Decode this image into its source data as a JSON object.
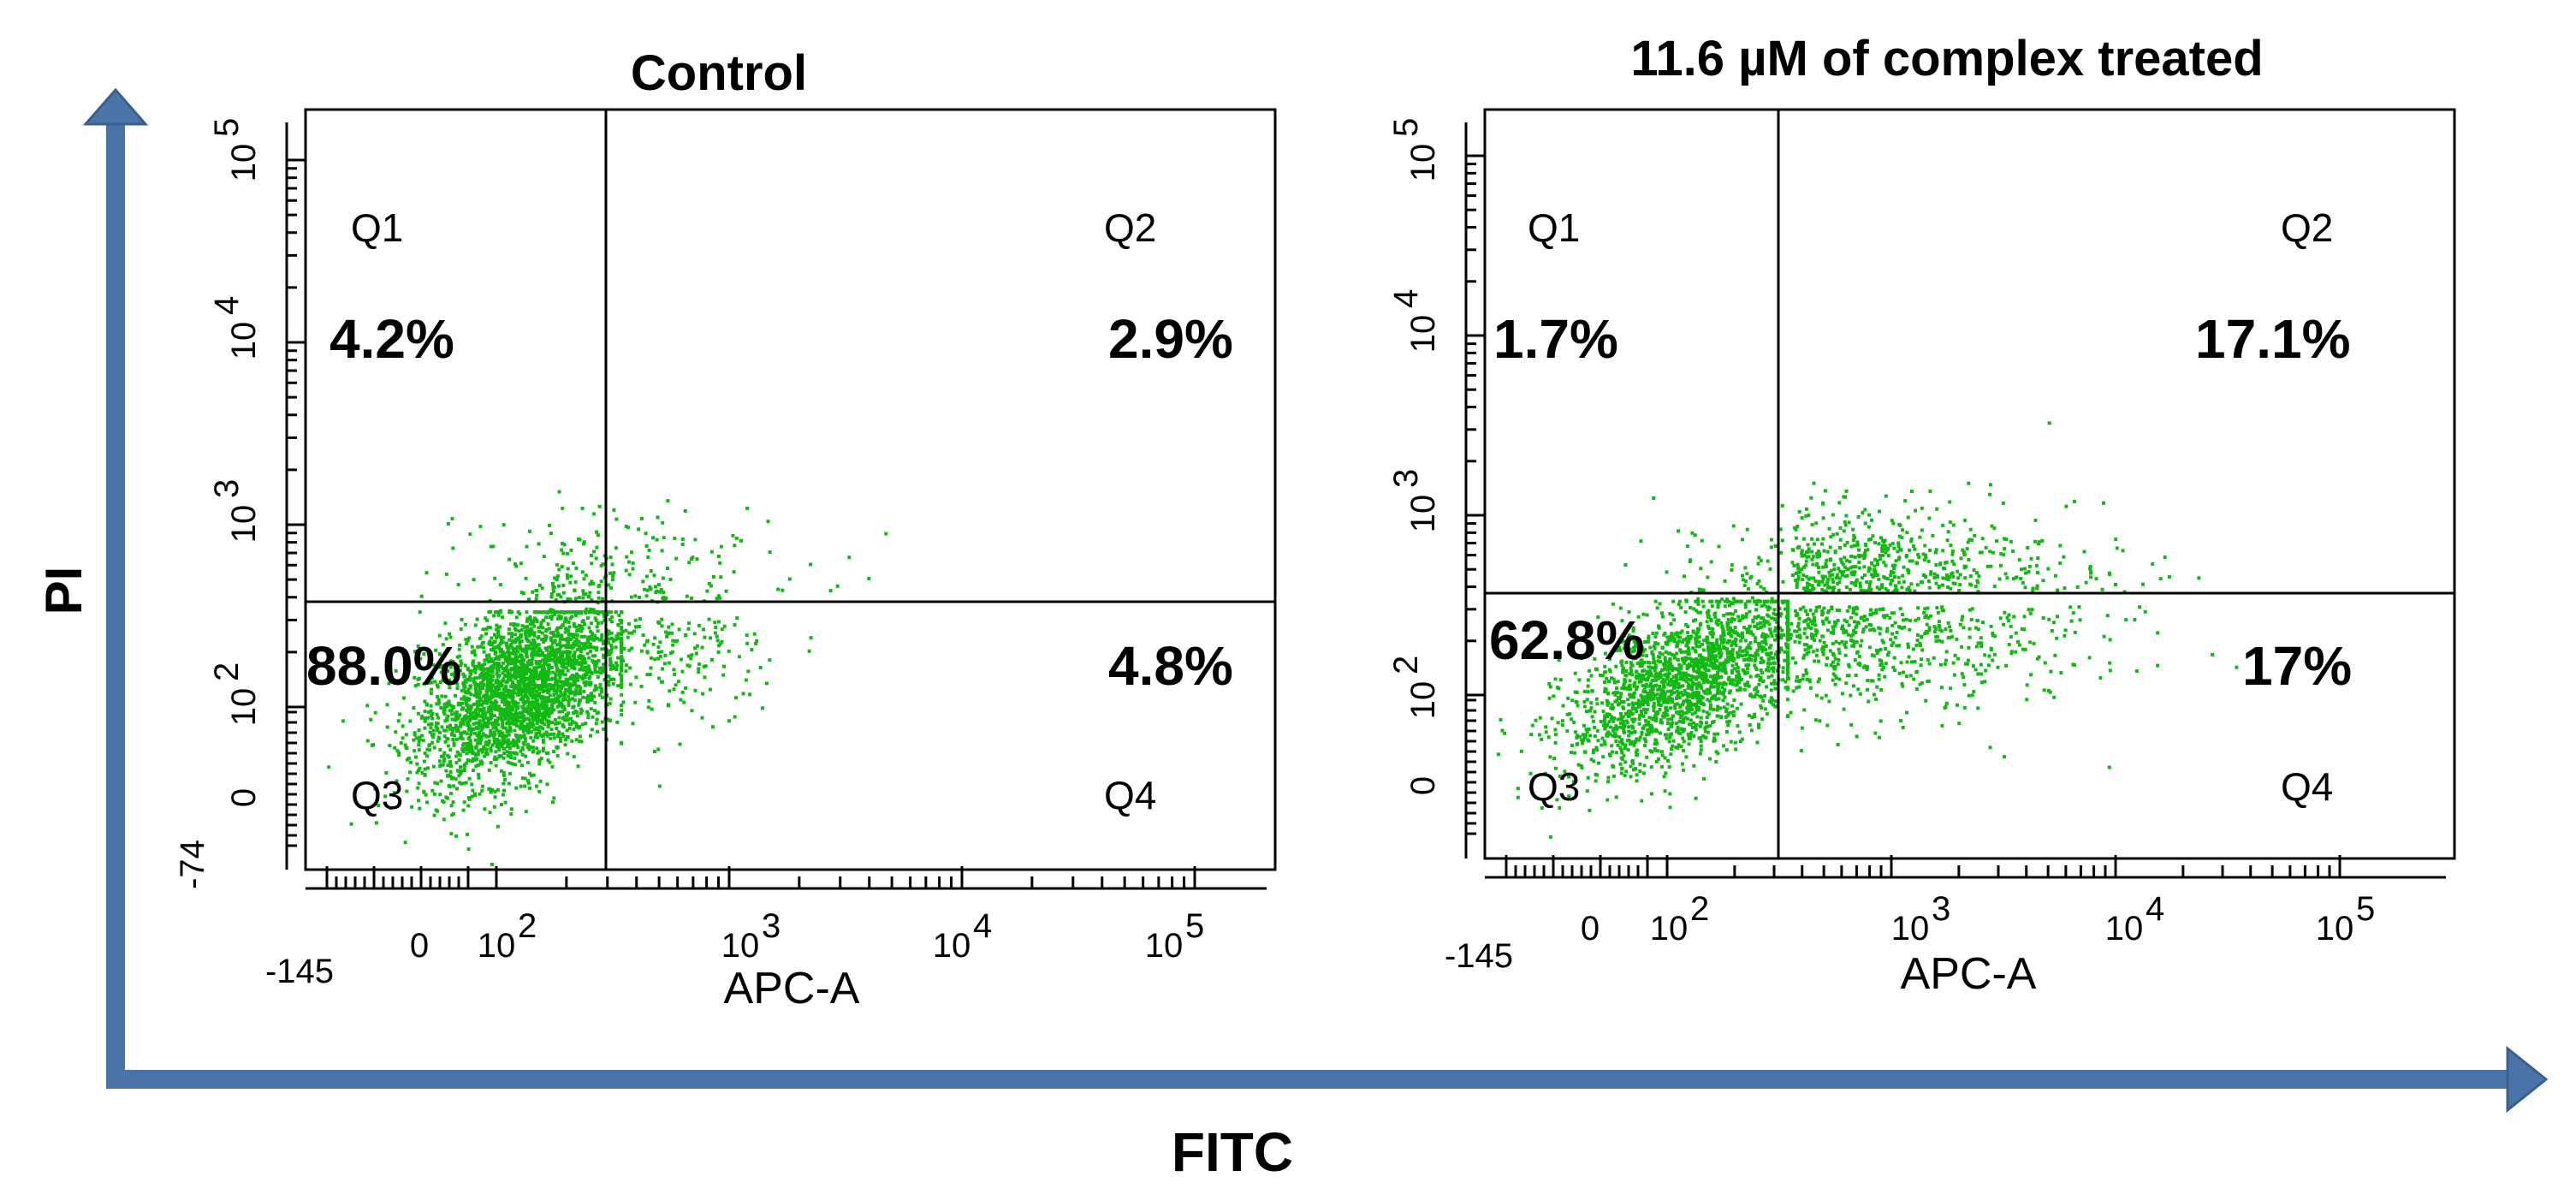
{
  "outer_axes": {
    "x_label": "FITC",
    "y_label": "PI",
    "arrow_color": "#4A74A8"
  },
  "dot_color": "#14B814",
  "chart_data": [
    {
      "type": "scatter",
      "title": "Control",
      "xlabel": "APC-A",
      "ylabel": "",
      "x_ticks": [
        "-145",
        "0",
        "10",
        "10",
        "10",
        "10"
      ],
      "x_tick_exponents": [
        "",
        "",
        "2",
        "3",
        "4",
        "5"
      ],
      "y_ticks": [
        "-74",
        "0",
        "10",
        "10",
        "10",
        "10"
      ],
      "y_tick_exponents": [
        "",
        "",
        "2",
        "3",
        "4",
        "5"
      ],
      "quadrants": [
        {
          "name": "Q1",
          "percent": "4.2%",
          "value": 4.2
        },
        {
          "name": "Q2",
          "percent": "2.9%",
          "value": 2.9
        },
        {
          "name": "Q3",
          "percent": "88.0%",
          "value": 88.0
        },
        {
          "name": "Q4",
          "percent": "4.8%",
          "value": 4.8
        }
      ],
      "gate_x_log": 2.55,
      "gate_y_log": 2.55,
      "population": {
        "center_x_log": 2.1,
        "center_y_log": 2.1,
        "spread_x": 0.22,
        "spread_y": 0.22,
        "tail_spread": 0.35
      }
    },
    {
      "type": "scatter",
      "title": "11.6 µM of complex treated",
      "xlabel": "APC-A",
      "ylabel": "",
      "x_ticks": [
        "-145",
        "0",
        "10",
        "10",
        "10",
        "10"
      ],
      "x_tick_exponents": [
        "",
        "",
        "2",
        "3",
        "4",
        "5"
      ],
      "y_ticks": [
        "0",
        "10",
        "10",
        "10",
        "10"
      ],
      "y_tick_exponents": [
        "",
        "2",
        "3",
        "4",
        "5"
      ],
      "quadrants": [
        {
          "name": "Q1",
          "percent": "1.7%",
          "value": 1.7
        },
        {
          "name": "Q2",
          "percent": "17.1%",
          "value": 17.1
        },
        {
          "name": "Q3",
          "percent": "62.8%",
          "value": 62.8
        },
        {
          "name": "Q4",
          "percent": "17%",
          "value": 17.0
        }
      ],
      "gate_x_log": 2.55,
      "gate_y_log": 2.55,
      "population": {
        "center_x_log": 2.1,
        "center_y_log": 2.1,
        "spread_x": 0.28,
        "spread_y": 0.2,
        "tail_spread": 0.6
      }
    }
  ]
}
